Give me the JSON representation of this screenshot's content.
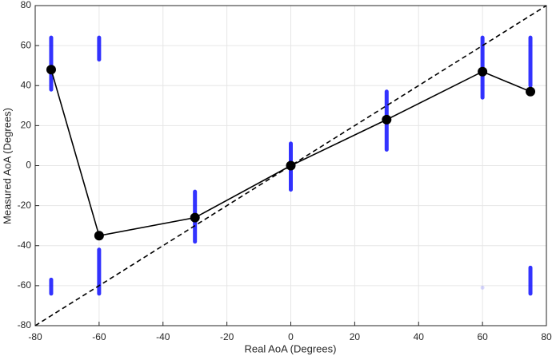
{
  "chart_data": {
    "type": "line",
    "xlabel": "Real AoA (Degrees)",
    "ylabel": "Measured AoA (Degrees)",
    "xlim": [
      -80,
      80
    ],
    "ylim": [
      -80,
      80
    ],
    "xticks": [
      -80,
      -60,
      -40,
      -20,
      0,
      20,
      40,
      60,
      80
    ],
    "yticks": [
      -80,
      -60,
      -40,
      -20,
      0,
      20,
      40,
      60,
      80
    ],
    "grid": true,
    "series": [
      {
        "color": "#000000",
        "style": "solid",
        "marker": true,
        "x": [
          -75,
          -60,
          -30,
          0,
          30,
          60,
          75
        ],
        "values": [
          48,
          -35,
          -26,
          0,
          23,
          47,
          37
        ]
      },
      {
        "color": "#000000",
        "style": "dashed",
        "marker": false,
        "x": [
          -80,
          80
        ],
        "values": [
          -80,
          80
        ]
      }
    ],
    "clusters": {
      "color": "#0000ff",
      "x": [
        -75,
        -75,
        -60,
        -60,
        -30,
        0,
        30,
        60,
        60,
        75,
        75
      ],
      "low": [
        38,
        -64,
        53,
        -64,
        -38,
        -12,
        8,
        34,
        -61,
        40,
        -64
      ],
      "high": [
        64,
        -57,
        64,
        -42,
        -13,
        11,
        37,
        64,
        -61,
        64,
        -51
      ]
    }
  }
}
